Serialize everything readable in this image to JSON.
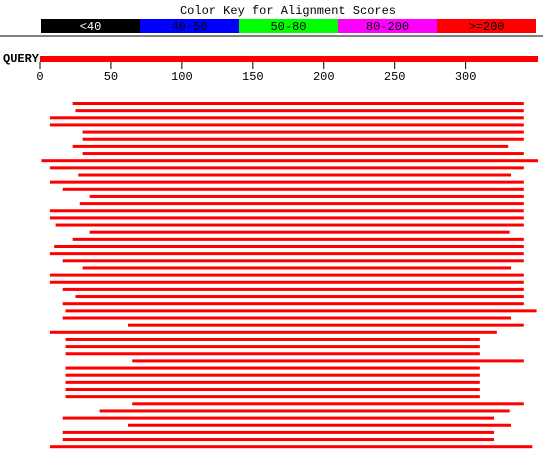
{
  "chart_data": {
    "type": "alignment",
    "title": "Color Key for Alignment Scores",
    "key": [
      {
        "label": "<40",
        "color": "#000000"
      },
      {
        "label": "40-50",
        "color": "#0000ff"
      },
      {
        "label": "50-80",
        "color": "#00ff00"
      },
      {
        "label": "80-200",
        "color": "#ff00ff"
      },
      {
        "label": ">=200",
        "color": "#ff0000"
      }
    ],
    "query": {
      "label": "QUERY",
      "start": 0,
      "end": 351,
      "color": "#ff0000"
    },
    "xlim": [
      0,
      351
    ],
    "xticks": [
      0,
      50,
      100,
      150,
      200,
      250,
      300
    ],
    "hit_color": "#ff0000",
    "hits": [
      {
        "start": 23,
        "end": 341
      },
      {
        "start": 25,
        "end": 341
      },
      {
        "start": 7,
        "end": 341
      },
      {
        "start": 7,
        "end": 341
      },
      {
        "start": 30,
        "end": 341
      },
      {
        "start": 30,
        "end": 341
      },
      {
        "start": 23,
        "end": 330
      },
      {
        "start": 30,
        "end": 341
      },
      {
        "start": 1,
        "end": 351
      },
      {
        "start": 7,
        "end": 341
      },
      {
        "start": 27,
        "end": 332
      },
      {
        "start": 7,
        "end": 341
      },
      {
        "start": 16,
        "end": 341
      },
      {
        "start": 35,
        "end": 341
      },
      {
        "start": 28,
        "end": 341
      },
      {
        "start": 7,
        "end": 341
      },
      {
        "start": 7,
        "end": 341
      },
      {
        "start": 11,
        "end": 341
      },
      {
        "start": 35,
        "end": 331
      },
      {
        "start": 23,
        "end": 341
      },
      {
        "start": 10,
        "end": 341
      },
      {
        "start": 7,
        "end": 341
      },
      {
        "start": 16,
        "end": 341
      },
      {
        "start": 30,
        "end": 332
      },
      {
        "start": 7,
        "end": 341
      },
      {
        "start": 7,
        "end": 341
      },
      {
        "start": 16,
        "end": 341
      },
      {
        "start": 25,
        "end": 341
      },
      {
        "start": 16,
        "end": 341
      },
      {
        "start": 18,
        "end": 350
      },
      {
        "start": 16,
        "end": 332
      },
      {
        "start": 62,
        "end": 341
      },
      {
        "start": 7,
        "end": 322
      },
      {
        "start": 18,
        "end": 310
      },
      {
        "start": 18,
        "end": 310
      },
      {
        "start": 18,
        "end": 310
      },
      {
        "start": 65,
        "end": 341
      },
      {
        "start": 18,
        "end": 310
      },
      {
        "start": 18,
        "end": 310
      },
      {
        "start": 18,
        "end": 310
      },
      {
        "start": 18,
        "end": 310
      },
      {
        "start": 18,
        "end": 310
      },
      {
        "start": 65,
        "end": 341
      },
      {
        "start": 42,
        "end": 331
      },
      {
        "start": 16,
        "end": 320
      },
      {
        "start": 62,
        "end": 332
      },
      {
        "start": 16,
        "end": 320
      },
      {
        "start": 16,
        "end": 320
      },
      {
        "start": 7,
        "end": 347
      }
    ]
  }
}
